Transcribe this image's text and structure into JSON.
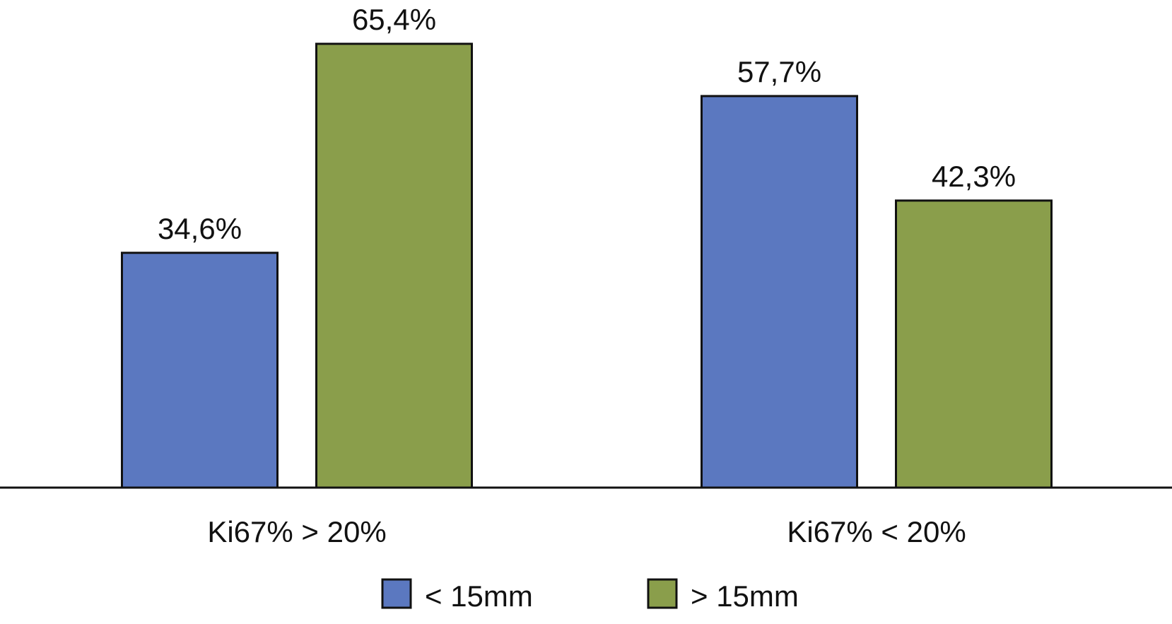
{
  "chart_data": {
    "type": "bar",
    "categories": [
      "Ki67% > 20%",
      "Ki67% < 20%"
    ],
    "series": [
      {
        "name": "< 15mm",
        "values": [
          34.6,
          57.7
        ],
        "labels": [
          "34,6%",
          "57,7%"
        ],
        "color": "#5b78c0"
      },
      {
        "name": "> 15mm",
        "values": [
          65.4,
          42.3
        ],
        "labels": [
          "65,4%",
          "42,3%"
        ],
        "color": "#8a9e4b"
      }
    ],
    "ylim": [
      0,
      70
    ],
    "grid": false,
    "legend_position": "bottom"
  }
}
